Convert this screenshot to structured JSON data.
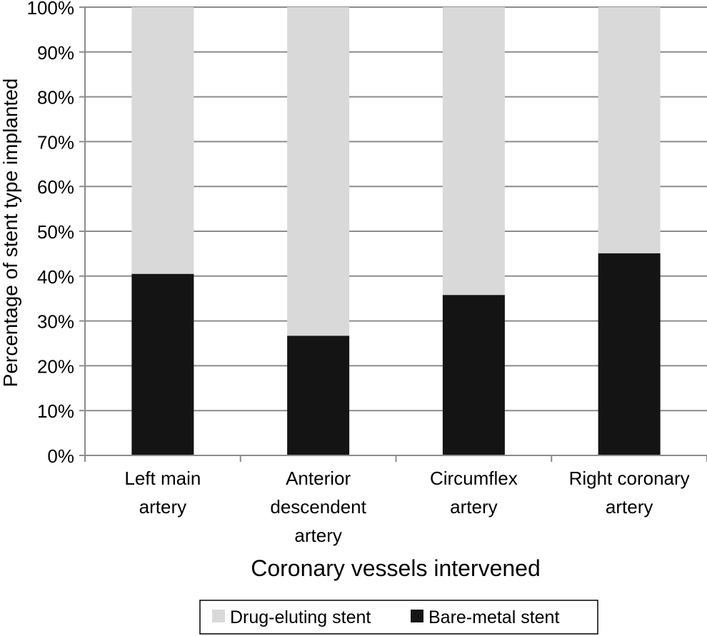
{
  "chart_data": {
    "type": "bar",
    "stacked": true,
    "categories": [
      [
        "Left main",
        "artery"
      ],
      [
        "Anterior",
        "descendent",
        "artery"
      ],
      [
        "Circumflex",
        "artery"
      ],
      [
        "Right coronary",
        "artery"
      ]
    ],
    "series": [
      {
        "name": "Bare-metal stent",
        "values": [
          40.5,
          26.7,
          35.8,
          45.1
        ],
        "color": "#141414"
      },
      {
        "name": "Drug-eluting stent",
        "values": [
          59.5,
          73.3,
          64.2,
          54.9
        ],
        "color": "#d9d9d9"
      }
    ],
    "legend_order": [
      "Drug-eluting stent",
      "Bare-metal stent"
    ],
    "title": "",
    "xlabel": "Coronary vessels intervened",
    "ylabel": "Percentage of stent type implanted",
    "ylim": [
      0,
      100
    ],
    "ytick_step": 10,
    "ytick_suffix": "%",
    "grid": true,
    "legend_position": "bottom"
  }
}
